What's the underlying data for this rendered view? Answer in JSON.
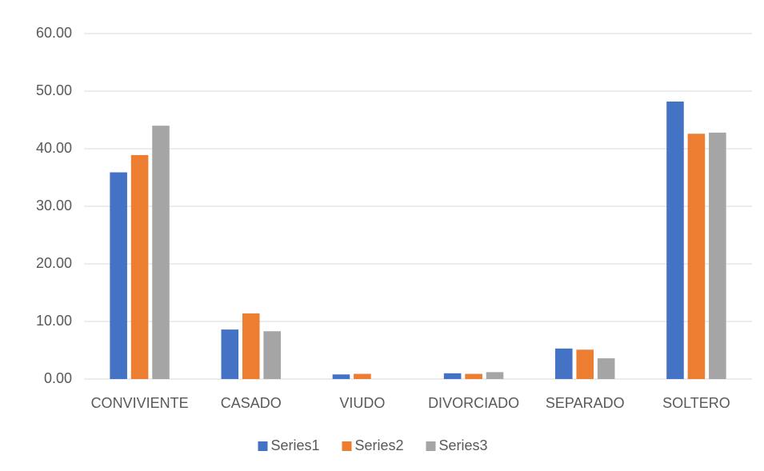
{
  "chart_data": {
    "type": "bar",
    "categories": [
      "CONVIVIENTE",
      "CASADO",
      "VIUDO",
      "DIVORCIADO",
      "SEPARADO",
      "SOLTERO"
    ],
    "series": [
      {
        "name": "Series1",
        "color": "#4472c4",
        "values": [
          35.9,
          8.6,
          0.8,
          1.0,
          5.3,
          48.2
        ]
      },
      {
        "name": "Series2",
        "color": "#ed7d31",
        "values": [
          38.9,
          11.4,
          0.9,
          0.9,
          5.1,
          42.6
        ]
      },
      {
        "name": "Series3",
        "color": "#a5a5a5",
        "values": [
          44.0,
          8.3,
          0,
          1.2,
          3.6,
          42.8
        ]
      }
    ],
    "ylim": [
      0,
      60
    ],
    "yticks": [
      {
        "value": 0,
        "label": "0.00"
      },
      {
        "value": 10,
        "label": "10.00"
      },
      {
        "value": 20,
        "label": "20.00"
      },
      {
        "value": 30,
        "label": "30.00"
      },
      {
        "value": 40,
        "label": "40.00"
      },
      {
        "value": 50,
        "label": "50.00"
      },
      {
        "value": 60,
        "label": "60.00"
      }
    ],
    "grid": true,
    "legend": "bottom"
  }
}
